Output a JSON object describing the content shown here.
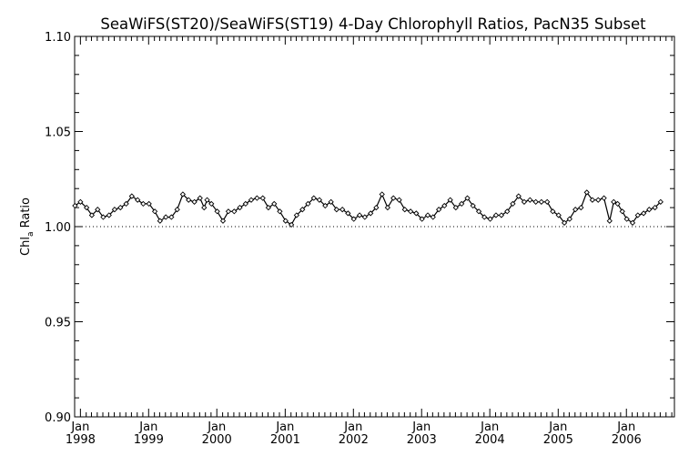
{
  "chart_data": {
    "type": "line",
    "title": "SeaWiFS(ST20)/SeaWiFS(ST19) 4-Day Chlorophyll Ratios, PacN35 Subset",
    "ylabel_main": "Chl",
    "ylabel_sub": "a",
    "ylabel_tail": " Ratio",
    "ylim": [
      0.9,
      1.1
    ],
    "xlim": [
      "1997-12-01",
      "2006-09-15"
    ],
    "y_ticks": [
      "0.90",
      "0.95",
      "1.00",
      "1.05",
      "1.10"
    ],
    "x_ticks": [
      {
        "month": "Jan",
        "year": "1998",
        "date": "1998-01-01"
      },
      {
        "month": "Jan",
        "year": "1999",
        "date": "1999-01-01"
      },
      {
        "month": "Jan",
        "year": "2000",
        "date": "2000-01-01"
      },
      {
        "month": "Jan",
        "year": "2001",
        "date": "2001-01-01"
      },
      {
        "month": "Jan",
        "year": "2002",
        "date": "2002-01-01"
      },
      {
        "month": "Jan",
        "year": "2003",
        "date": "2003-01-01"
      },
      {
        "month": "Jan",
        "year": "2004",
        "date": "2004-01-01"
      },
      {
        "month": "Jan",
        "year": "2005",
        "date": "2005-01-01"
      },
      {
        "month": "Jan",
        "year": "2006",
        "date": "2006-01-01"
      }
    ],
    "reference_line": 1.0,
    "grid": false,
    "series": [
      {
        "color": "#000000",
        "marker": "diamond",
        "points": [
          [
            "1997-12-03",
            1.011
          ],
          [
            "1998-01-01",
            1.013
          ],
          [
            "1998-02-03",
            1.01
          ],
          [
            "1998-03-03",
            1.006
          ],
          [
            "1998-04-03",
            1.009
          ],
          [
            "1998-05-03",
            1.005
          ],
          [
            "1998-06-03",
            1.006
          ],
          [
            "1998-07-03",
            1.009
          ],
          [
            "1998-08-03",
            1.01
          ],
          [
            "1998-09-03",
            1.012
          ],
          [
            "1998-10-03",
            1.016
          ],
          [
            "1998-11-03",
            1.014
          ],
          [
            "1998-12-03",
            1.012
          ],
          [
            "1999-01-03",
            1.012
          ],
          [
            "1999-02-03",
            1.008
          ],
          [
            "1999-03-03",
            1.003
          ],
          [
            "1999-04-03",
            1.005
          ],
          [
            "1999-05-03",
            1.005
          ],
          [
            "1999-06-03",
            1.009
          ],
          [
            "1999-07-03",
            1.017
          ],
          [
            "1999-08-03",
            1.014
          ],
          [
            "1999-09-03",
            1.013
          ],
          [
            "1999-10-03",
            1.015
          ],
          [
            "1999-10-25",
            1.01
          ],
          [
            "1999-11-10",
            1.014
          ],
          [
            "1999-12-03",
            1.012
          ],
          [
            "2000-01-03",
            1.008
          ],
          [
            "2000-02-03",
            1.003
          ],
          [
            "2000-03-03",
            1.008
          ],
          [
            "2000-04-03",
            1.008
          ],
          [
            "2000-05-03",
            1.01
          ],
          [
            "2000-06-03",
            1.012
          ],
          [
            "2000-07-03",
            1.014
          ],
          [
            "2000-08-03",
            1.015
          ],
          [
            "2000-09-03",
            1.015
          ],
          [
            "2000-10-03",
            1.01
          ],
          [
            "2000-11-03",
            1.012
          ],
          [
            "2000-12-03",
            1.008
          ],
          [
            "2001-01-03",
            1.003
          ],
          [
            "2001-02-03",
            1.001
          ],
          [
            "2001-03-03",
            1.006
          ],
          [
            "2001-04-03",
            1.009
          ],
          [
            "2001-05-03",
            1.012
          ],
          [
            "2001-06-03",
            1.015
          ],
          [
            "2001-07-03",
            1.014
          ],
          [
            "2001-08-03",
            1.011
          ],
          [
            "2001-09-03",
            1.013
          ],
          [
            "2001-10-03",
            1.009
          ],
          [
            "2001-11-03",
            1.009
          ],
          [
            "2001-12-03",
            1.007
          ],
          [
            "2002-01-03",
            1.004
          ],
          [
            "2002-02-03",
            1.006
          ],
          [
            "2002-03-03",
            1.005
          ],
          [
            "2002-04-03",
            1.007
          ],
          [
            "2002-05-03",
            1.01
          ],
          [
            "2002-06-03",
            1.017
          ],
          [
            "2002-07-03",
            1.01
          ],
          [
            "2002-08-03",
            1.015
          ],
          [
            "2002-09-03",
            1.014
          ],
          [
            "2002-10-03",
            1.009
          ],
          [
            "2002-11-03",
            1.008
          ],
          [
            "2002-12-03",
            1.007
          ],
          [
            "2003-01-03",
            1.004
          ],
          [
            "2003-02-03",
            1.006
          ],
          [
            "2003-03-03",
            1.005
          ],
          [
            "2003-04-03",
            1.009
          ],
          [
            "2003-05-03",
            1.011
          ],
          [
            "2003-06-03",
            1.014
          ],
          [
            "2003-07-03",
            1.01
          ],
          [
            "2003-08-03",
            1.012
          ],
          [
            "2003-09-03",
            1.015
          ],
          [
            "2003-10-03",
            1.011
          ],
          [
            "2003-11-03",
            1.008
          ],
          [
            "2003-12-03",
            1.005
          ],
          [
            "2004-01-03",
            1.004
          ],
          [
            "2004-02-03",
            1.006
          ],
          [
            "2004-03-03",
            1.006
          ],
          [
            "2004-04-03",
            1.008
          ],
          [
            "2004-05-03",
            1.012
          ],
          [
            "2004-06-03",
            1.016
          ],
          [
            "2004-07-03",
            1.013
          ],
          [
            "2004-08-03",
            1.014
          ],
          [
            "2004-09-03",
            1.013
          ],
          [
            "2004-10-03",
            1.013
          ],
          [
            "2004-11-03",
            1.013
          ],
          [
            "2004-12-03",
            1.008
          ],
          [
            "2005-01-03",
            1.006
          ],
          [
            "2005-02-03",
            1.002
          ],
          [
            "2005-03-03",
            1.004
          ],
          [
            "2005-04-03",
            1.009
          ],
          [
            "2005-05-03",
            1.01
          ],
          [
            "2005-06-03",
            1.018
          ],
          [
            "2005-07-03",
            1.014
          ],
          [
            "2005-08-03",
            1.014
          ],
          [
            "2005-09-03",
            1.015
          ],
          [
            "2005-10-03",
            1.003
          ],
          [
            "2005-10-25",
            1.013
          ],
          [
            "2005-11-15",
            1.012
          ],
          [
            "2005-12-10",
            1.008
          ],
          [
            "2006-01-03",
            1.004
          ],
          [
            "2006-02-03",
            1.002
          ],
          [
            "2006-03-03",
            1.006
          ],
          [
            "2006-04-03",
            1.007
          ],
          [
            "2006-05-03",
            1.009
          ],
          [
            "2006-06-03",
            1.01
          ],
          [
            "2006-07-03",
            1.013
          ]
        ]
      }
    ]
  }
}
